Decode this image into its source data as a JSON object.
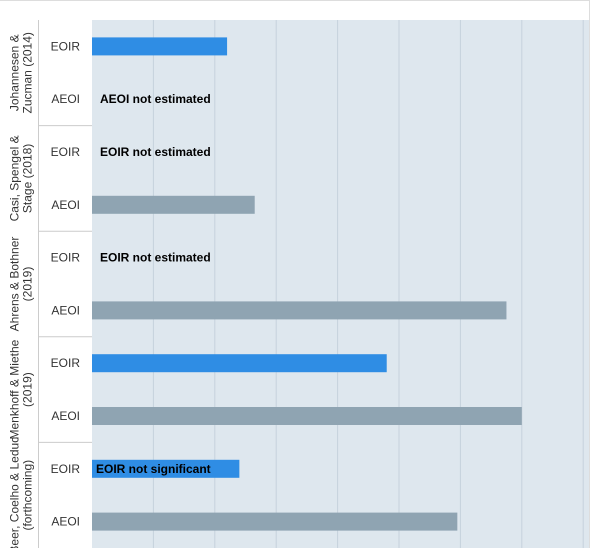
{
  "chart_data": {
    "type": "bar",
    "orientation": "horizontal",
    "title": "",
    "xlabel": "",
    "ylabel": "",
    "xlim": [
      0,
      16
    ],
    "grid": true,
    "legend": "none",
    "colors": {
      "EOIR": "#2f8de4",
      "AEOI": "#8fa4b2",
      "background": "#dee7ee",
      "grid": "#c6d2dc"
    },
    "groups": [
      {
        "study": [
          "Johannesen &",
          "Zucman (2014)"
        ],
        "rows": [
          {
            "label": "EOIR",
            "value": 4.4,
            "note": ""
          },
          {
            "label": "AEOI",
            "value": null,
            "note": "AEOI not estimated"
          }
        ]
      },
      {
        "study": [
          "Casi, Spengel &",
          "Stage (2018)"
        ],
        "rows": [
          {
            "label": "EOIR",
            "value": null,
            "note": "EOIR not estimated"
          },
          {
            "label": "AEOI",
            "value": 5.3,
            "note": ""
          }
        ]
      },
      {
        "study": [
          "Ahrens & Bothner",
          "(2019)"
        ],
        "rows": [
          {
            "label": "EOIR",
            "value": null,
            "note": "EOIR not estimated"
          },
          {
            "label": "AEOI",
            "value": 13.5,
            "note": ""
          }
        ]
      },
      {
        "study": [
          "Menkhoff & Miethe",
          "(2019)"
        ],
        "rows": [
          {
            "label": "EOIR",
            "value": 9.6,
            "note": ""
          },
          {
            "label": "AEOI",
            "value": 14.0,
            "note": ""
          }
        ]
      },
      {
        "study": [
          "Beer, Coelho & Leduc",
          "(forthcoming)"
        ],
        "rows": [
          {
            "label": "EOIR",
            "value": 4.8,
            "note": "EOIR not significant"
          },
          {
            "label": "AEOI",
            "value": 11.9,
            "note": ""
          }
        ]
      }
    ]
  }
}
